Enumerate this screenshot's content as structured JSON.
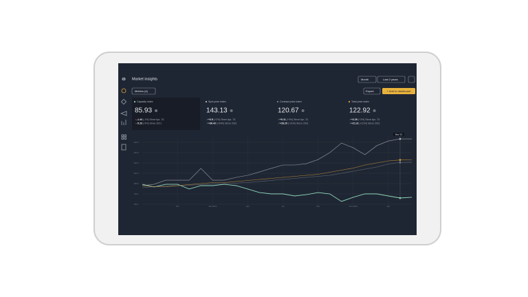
{
  "header": {
    "title": "Market insights",
    "period": "Month",
    "range": "Last 2 years"
  },
  "toolbar": {
    "metrics": "Metrics (4)",
    "export": "Export",
    "add": "+ Add to dashboard"
  },
  "cards": [
    {
      "label": "Capacity index",
      "value": 85.93,
      "changes": [
        {
          "delta": "-1.44",
          "note": "(-1%) Since Apr, '21"
        },
        {
          "delta": "-5.23",
          "note": "(-5%) Since 2021"
        }
      ]
    },
    {
      "label": "Spot price index",
      "value": 143.13,
      "changes": [
        {
          "delta": "+3.5",
          "note": "(+2%) Since Apr, '21"
        },
        {
          "delta": "+36.43",
          "note": "(+34%) Since 2021"
        }
      ]
    },
    {
      "label": "Contract price index",
      "value": 120.67,
      "changes": [
        {
          "delta": "+0.11",
          "note": "(+0%) Since Apr, '21"
        },
        {
          "delta": "+28.29",
          "note": "(+31%) Since 2021"
        }
      ]
    },
    {
      "label": "Total price index",
      "value": 122.92,
      "changes": [
        {
          "delta": "+2.29",
          "note": "(+2%) Since Apr, '21"
        },
        {
          "delta": "+21.31",
          "note": "(+21%) Since 2021"
        }
      ]
    }
  ],
  "chart_data": {
    "type": "line",
    "categories": [
      null,
      null,
      null,
      "Oct",
      null,
      null,
      "Jan 2021",
      null,
      null,
      "Apr",
      null,
      null,
      "Jul",
      null,
      null,
      "Oct",
      null,
      null,
      "Jan 2022",
      null,
      null,
      "Apr",
      null,
      null
    ],
    "series": [
      {
        "name": "Capacity index",
        "color": "#8fd6b8",
        "values": [
          99.3,
          96.7,
          99.3,
          99.3,
          94.7,
          98,
          98,
          99.3,
          98,
          94.7,
          91.3,
          90,
          90,
          88,
          89.3,
          91.3,
          90,
          82.7,
          86.7,
          90,
          90,
          88,
          86,
          86.7
        ]
      },
      {
        "name": "Spot price index",
        "color": "#b9bcc4",
        "values": [
          98,
          99.3,
          103.3,
          103.3,
          103.3,
          114.7,
          103.3,
          103.3,
          106,
          108,
          111.3,
          114.7,
          118,
          118,
          119.3,
          123.3,
          130,
          139.3,
          134.7,
          128,
          136.7,
          141.3,
          143.3,
          143.3
        ]
      },
      {
        "name": "Contract price index",
        "color": "#7d818a",
        "values": [
          96,
          97,
          97.5,
          98,
          98.5,
          99,
          99.5,
          100,
          100.5,
          101,
          102,
          103,
          104,
          105,
          106,
          107,
          108,
          110,
          112,
          114,
          116,
          119,
          120.5,
          120.7
        ]
      },
      {
        "name": "Total price index",
        "color": "#e0a43a",
        "values": [
          98,
          97,
          97,
          98,
          99,
          100,
          101,
          101,
          102,
          103,
          104,
          105,
          106,
          107,
          108,
          109,
          111,
          113,
          115,
          118,
          120,
          122,
          122.9,
          123
        ]
      }
    ],
    "ylim": [
      77,
      146
    ],
    "yticks": [
      {
        "value": 80,
        "label": "80.0"
      },
      {
        "value": 90,
        "label": "90.0"
      },
      {
        "value": 100,
        "label": "100.0"
      },
      {
        "value": 110,
        "label": "110.0"
      },
      {
        "value": 120,
        "label": "120.0"
      },
      {
        "value": 130,
        "label": "130.0"
      },
      {
        "value": 140,
        "label": "140.0"
      }
    ],
    "grid": true,
    "tooltip": "May '22"
  }
}
